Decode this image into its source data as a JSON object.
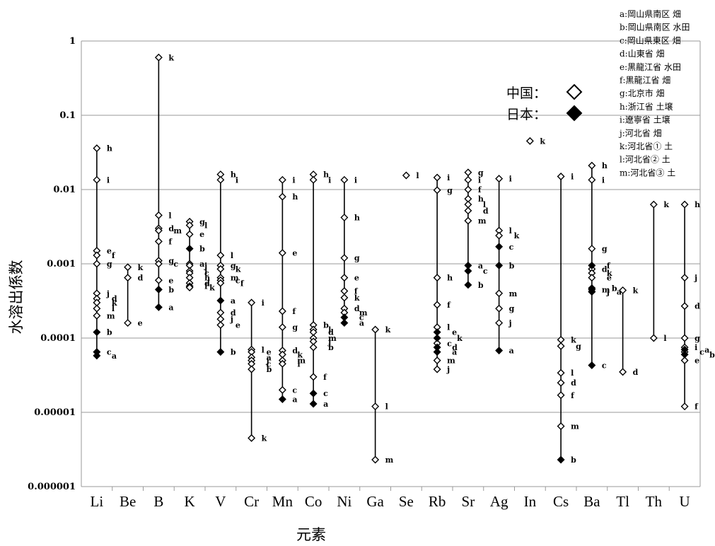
{
  "chart_data": {
    "type": "scatter",
    "xlabel": "元素",
    "ylabel": "水溶出係数",
    "yscale": "log",
    "ylim": [
      1e-06,
      1
    ],
    "y_ticks": [
      "0.000001",
      "0.00001",
      "0.0001",
      "0.001",
      "0.01",
      "0.1",
      "1"
    ],
    "grid": "horizontal",
    "categories": [
      "Li",
      "Be",
      "B",
      "K",
      "V",
      "Cr",
      "Mn",
      "Co",
      "Ni",
      "Ga",
      "Se",
      "Rb",
      "Sr",
      "Ag",
      "In",
      "Cs",
      "Ba",
      "Tl",
      "Th",
      "U"
    ],
    "series": [
      {
        "name": "中国",
        "marker": "open-diamond",
        "points": [
          {
            "el": "Li",
            "y": 0.036,
            "label": "h"
          },
          {
            "el": "Li",
            "y": 0.0135,
            "label": "i"
          },
          {
            "el": "Li",
            "y": 0.0015,
            "label": "e"
          },
          {
            "el": "Li",
            "y": 0.0013,
            "label": "f"
          },
          {
            "el": "Li",
            "y": 0.001,
            "label": "g"
          },
          {
            "el": "Li",
            "y": 0.0004,
            "label": "j"
          },
          {
            "el": "Li",
            "y": 0.00034,
            "label": "d"
          },
          {
            "el": "Li",
            "y": 0.0003,
            "label": "k"
          },
          {
            "el": "Li",
            "y": 0.00025,
            "label": "l"
          },
          {
            "el": "Li",
            "y": 0.0002,
            "label": "m"
          },
          {
            "el": "Be",
            "y": 0.0009,
            "label": "k"
          },
          {
            "el": "Be",
            "y": 0.00065,
            "label": "d"
          },
          {
            "el": "Be",
            "y": 0.00016,
            "label": "e"
          },
          {
            "el": "B",
            "y": 0.6,
            "label": "k"
          },
          {
            "el": "B",
            "y": 0.0045,
            "label": "l"
          },
          {
            "el": "B",
            "y": 0.003,
            "label": "d"
          },
          {
            "el": "B",
            "y": 0.0028,
            "label": "m"
          },
          {
            "el": "B",
            "y": 0.002,
            "label": "f"
          },
          {
            "el": "B",
            "y": 0.0011,
            "label": "g"
          },
          {
            "el": "B",
            "y": 0.001,
            "label": "c"
          },
          {
            "el": "B",
            "y": 0.0006,
            "label": "e"
          },
          {
            "el": "K",
            "y": 0.0037,
            "label": "g"
          },
          {
            "el": "K",
            "y": 0.0033,
            "label": "l"
          },
          {
            "el": "K",
            "y": 0.0025,
            "label": "e"
          },
          {
            "el": "K",
            "y": 0.001,
            "label": "a"
          },
          {
            "el": "K",
            "y": 0.00095,
            "label": "j"
          },
          {
            "el": "K",
            "y": 0.0008,
            "label": "i"
          },
          {
            "el": "K",
            "y": 0.00075,
            "label": "c"
          },
          {
            "el": "K",
            "y": 0.00065,
            "label": "h"
          },
          {
            "el": "K",
            "y": 0.00055,
            "label": "d"
          },
          {
            "el": "K",
            "y": 0.0005,
            "label": "f"
          },
          {
            "el": "K",
            "y": 0.00048,
            "label": "k"
          },
          {
            "el": "V",
            "y": 0.016,
            "label": "h"
          },
          {
            "el": "V",
            "y": 0.0135,
            "label": "i"
          },
          {
            "el": "V",
            "y": 0.0013,
            "label": "l"
          },
          {
            "el": "V",
            "y": 0.00095,
            "label": "g"
          },
          {
            "el": "V",
            "y": 0.00085,
            "label": "k"
          },
          {
            "el": "V",
            "y": 0.00065,
            "label": "m"
          },
          {
            "el": "V",
            "y": 0.0006,
            "label": "c"
          },
          {
            "el": "V",
            "y": 0.00055,
            "label": "f"
          },
          {
            "el": "V",
            "y": 0.00022,
            "label": "d"
          },
          {
            "el": "V",
            "y": 0.00018,
            "label": "j"
          },
          {
            "el": "V",
            "y": 0.00015,
            "label": "e"
          },
          {
            "el": "Cr",
            "y": 0.0003,
            "label": "i"
          },
          {
            "el": "Cr",
            "y": 7e-05,
            "label": "l"
          },
          {
            "el": "Cr",
            "y": 6.5e-05,
            "label": "e"
          },
          {
            "el": "Cr",
            "y": 5.5e-05,
            "label": "a"
          },
          {
            "el": "Cr",
            "y": 5e-05,
            "label": "j"
          },
          {
            "el": "Cr",
            "y": 4.5e-05,
            "label": "c"
          },
          {
            "el": "Cr",
            "y": 3.8e-05,
            "label": "b"
          },
          {
            "el": "Cr",
            "y": 4.5e-06,
            "label": "k"
          },
          {
            "el": "Mn",
            "y": 0.0135,
            "label": "i"
          },
          {
            "el": "Mn",
            "y": 0.008,
            "label": "h"
          },
          {
            "el": "Mn",
            "y": 0.0014,
            "label": "e"
          },
          {
            "el": "Mn",
            "y": 0.00023,
            "label": "f"
          },
          {
            "el": "Mn",
            "y": 0.00014,
            "label": "g"
          },
          {
            "el": "Mn",
            "y": 6.8e-05,
            "label": "d"
          },
          {
            "el": "Mn",
            "y": 6e-05,
            "label": "k"
          },
          {
            "el": "Mn",
            "y": 5e-05,
            "label": "m"
          },
          {
            "el": "Mn",
            "y": 4.5e-05,
            "label": "l"
          },
          {
            "el": "Mn",
            "y": 2e-05,
            "label": "c"
          },
          {
            "el": "Co",
            "y": 0.016,
            "label": "h"
          },
          {
            "el": "Co",
            "y": 0.0135,
            "label": "i"
          },
          {
            "el": "Co",
            "y": 0.00015,
            "label": "b"
          },
          {
            "el": "Co",
            "y": 0.00013,
            "label": "l"
          },
          {
            "el": "Co",
            "y": 0.00012,
            "label": "d"
          },
          {
            "el": "Co",
            "y": 0.0001,
            "label": "m"
          },
          {
            "el": "Co",
            "y": 9e-05,
            "label": "j"
          },
          {
            "el": "Co",
            "y": 7.5e-05,
            "label": "b"
          },
          {
            "el": "Co",
            "y": 3e-05,
            "label": "f"
          },
          {
            "el": "Ni",
            "y": 0.0135,
            "label": "i"
          },
          {
            "el": "Ni",
            "y": 0.0042,
            "label": "h"
          },
          {
            "el": "Ni",
            "y": 0.0012,
            "label": "g"
          },
          {
            "el": "Ni",
            "y": 0.00065,
            "label": "e"
          },
          {
            "el": "Ni",
            "y": 0.00043,
            "label": "f"
          },
          {
            "el": "Ni",
            "y": 0.00035,
            "label": "k"
          },
          {
            "el": "Ni",
            "y": 0.00025,
            "label": "d"
          },
          {
            "el": "Ni",
            "y": 0.00022,
            "label": "m"
          },
          {
            "el": "Ga",
            "y": 0.00013,
            "label": "k"
          },
          {
            "el": "Ga",
            "y": 1.2e-05,
            "label": "l"
          },
          {
            "el": "Ga",
            "y": 2.3e-06,
            "label": "m"
          },
          {
            "el": "Se",
            "y": 0.0155,
            "label": "l"
          },
          {
            "el": "Rb",
            "y": 0.0145,
            "label": "i"
          },
          {
            "el": "Rb",
            "y": 0.0098,
            "label": "g"
          },
          {
            "el": "Rb",
            "y": 0.00065,
            "label": "h"
          },
          {
            "el": "Rb",
            "y": 0.00028,
            "label": "f"
          },
          {
            "el": "Rb",
            "y": 0.00014,
            "label": "l"
          },
          {
            "el": "Rb",
            "y": 8.5e-05,
            "label": "c"
          },
          {
            "el": "Rb",
            "y": 5e-05,
            "label": "m"
          },
          {
            "el": "Rb",
            "y": 3.8e-05,
            "label": "j"
          },
          {
            "el": "Sr",
            "y": 0.017,
            "label": "g"
          },
          {
            "el": "Sr",
            "y": 0.0135,
            "label": "i"
          },
          {
            "el": "Sr",
            "y": 0.01,
            "label": "f"
          },
          {
            "el": "Sr",
            "y": 0.0075,
            "label": "h"
          },
          {
            "el": "Sr",
            "y": 0.0063,
            "label": "l"
          },
          {
            "el": "Sr",
            "y": 0.0052,
            "label": "d"
          },
          {
            "el": "Sr",
            "y": 0.0038,
            "label": "m"
          },
          {
            "el": "Ag",
            "y": 0.014,
            "label": "i"
          },
          {
            "el": "Ag",
            "y": 0.0028,
            "label": "l"
          },
          {
            "el": "Ag",
            "y": 0.0024,
            "label": "k"
          },
          {
            "el": "Ag",
            "y": 0.0004,
            "label": "m"
          },
          {
            "el": "Ag",
            "y": 0.00025,
            "label": "g"
          },
          {
            "el": "Ag",
            "y": 0.00016,
            "label": "j"
          },
          {
            "el": "In",
            "y": 0.045,
            "label": "k"
          },
          {
            "el": "Cs",
            "y": 0.015,
            "label": "i"
          },
          {
            "el": "Cs",
            "y": 9.5e-05,
            "label": "k"
          },
          {
            "el": "Cs",
            "y": 7.8e-05,
            "label": "g"
          },
          {
            "el": "Cs",
            "y": 3.4e-05,
            "label": "l"
          },
          {
            "el": "Cs",
            "y": 2.5e-05,
            "label": "d"
          },
          {
            "el": "Cs",
            "y": 1.7e-05,
            "label": "f"
          },
          {
            "el": "Cs",
            "y": 6.5e-06,
            "label": "m"
          },
          {
            "el": "Ba",
            "y": 0.021,
            "label": "h"
          },
          {
            "el": "Ba",
            "y": 0.0135,
            "label": "i"
          },
          {
            "el": "Ba",
            "y": 0.0016,
            "label": "g"
          },
          {
            "el": "Ba",
            "y": 0.00085,
            "label": "d"
          },
          {
            "el": "Ba",
            "y": 0.00075,
            "label": "k"
          },
          {
            "el": "Ba",
            "y": 0.00065,
            "label": "e"
          },
          {
            "el": "Ba",
            "y": 0.00045,
            "label": "m"
          },
          {
            "el": "Ba",
            "y": 0.00042,
            "label": "j"
          },
          {
            "el": "Tl",
            "y": 0.00044,
            "label": "k"
          },
          {
            "el": "Tl",
            "y": 3.5e-05,
            "label": "d"
          },
          {
            "el": "Th",
            "y": 0.0063,
            "label": "k"
          },
          {
            "el": "Th",
            "y": 0.0001,
            "label": "l"
          },
          {
            "el": "U",
            "y": 0.0063,
            "label": "h"
          },
          {
            "el": "U",
            "y": 0.00065,
            "label": "j"
          },
          {
            "el": "U",
            "y": 0.00027,
            "label": "d"
          },
          {
            "el": "U",
            "y": 0.0001,
            "label": "g"
          },
          {
            "el": "U",
            "y": 7.5e-05,
            "label": "i"
          },
          {
            "el": "U",
            "y": 6.5e-05,
            "label": "c"
          },
          {
            "el": "U",
            "y": 5e-05,
            "label": "e"
          },
          {
            "el": "U",
            "y": 1.2e-05,
            "label": "f"
          }
        ]
      },
      {
        "name": "日本",
        "marker": "filled-diamond",
        "points": [
          {
            "el": "Li",
            "y": 0.00012,
            "label": "b"
          },
          {
            "el": "Li",
            "y": 6.5e-05,
            "label": "c"
          },
          {
            "el": "Li",
            "y": 5.8e-05,
            "label": "a"
          },
          {
            "el": "B",
            "y": 0.00045,
            "label": "b"
          },
          {
            "el": "B",
            "y": 0.00026,
            "label": "a"
          },
          {
            "el": "K",
            "y": 0.0016,
            "label": "b"
          },
          {
            "el": "V",
            "y": 0.00032,
            "label": "a"
          },
          {
            "el": "V",
            "y": 6.5e-05,
            "label": "b"
          },
          {
            "el": "Mn",
            "y": 1.5e-05,
            "label": "a"
          },
          {
            "el": "Co",
            "y": 1.8e-05,
            "label": "c"
          },
          {
            "el": "Co",
            "y": 1.3e-05,
            "label": "a"
          },
          {
            "el": "Ni",
            "y": 0.00019,
            "label": "c"
          },
          {
            "el": "Ni",
            "y": 0.00016,
            "label": "a"
          },
          {
            "el": "Rb",
            "y": 0.00012,
            "label": "e"
          },
          {
            "el": "Rb",
            "y": 0.0001,
            "label": "k"
          },
          {
            "el": "Rb",
            "y": 7.5e-05,
            "label": "d"
          },
          {
            "el": "Rb",
            "y": 6.5e-05,
            "label": "a"
          },
          {
            "el": "Sr",
            "y": 0.00095,
            "label": "a"
          },
          {
            "el": "Sr",
            "y": 0.0008,
            "label": "c"
          },
          {
            "el": "Sr",
            "y": 0.00052,
            "label": "b"
          },
          {
            "el": "Ag",
            "y": 0.0017,
            "label": "c"
          },
          {
            "el": "Ag",
            "y": 0.00095,
            "label": "b"
          },
          {
            "el": "Ag",
            "y": 6.8e-05,
            "label": "a"
          },
          {
            "el": "Cs",
            "y": 2.3e-06,
            "label": "b"
          },
          {
            "el": "Ba",
            "y": 0.00095,
            "label": "f"
          },
          {
            "el": "Ba",
            "y": 0.00047,
            "label": "b"
          },
          {
            "el": "Ba",
            "y": 0.00042,
            "label": "a"
          },
          {
            "el": "Ba",
            "y": 4.3e-05,
            "label": "c"
          },
          {
            "el": "U",
            "y": 7e-05,
            "label": "a"
          },
          {
            "el": "U",
            "y": 6e-05,
            "label": "b"
          }
        ]
      }
    ],
    "site_key": [
      "a:岡山県南区 畑",
      "b:岡山県南区 水田",
      "c:岡山県東区 畑",
      "d:山東省 畑",
      "e:黒龍江省 水田",
      "f:黒龍江省 畑",
      "g:北京市 畑",
      "h:浙江省 土壌",
      "i:遼寧省 土壌",
      "j:河北省 畑",
      "k:河北省① 土",
      "l:河北省② 土",
      "m:河北省③ 土"
    ],
    "marker_legend": [
      {
        "label": "中国：",
        "marker": "open-diamond"
      },
      {
        "label": "日本：",
        "marker": "filled-diamond"
      }
    ]
  }
}
